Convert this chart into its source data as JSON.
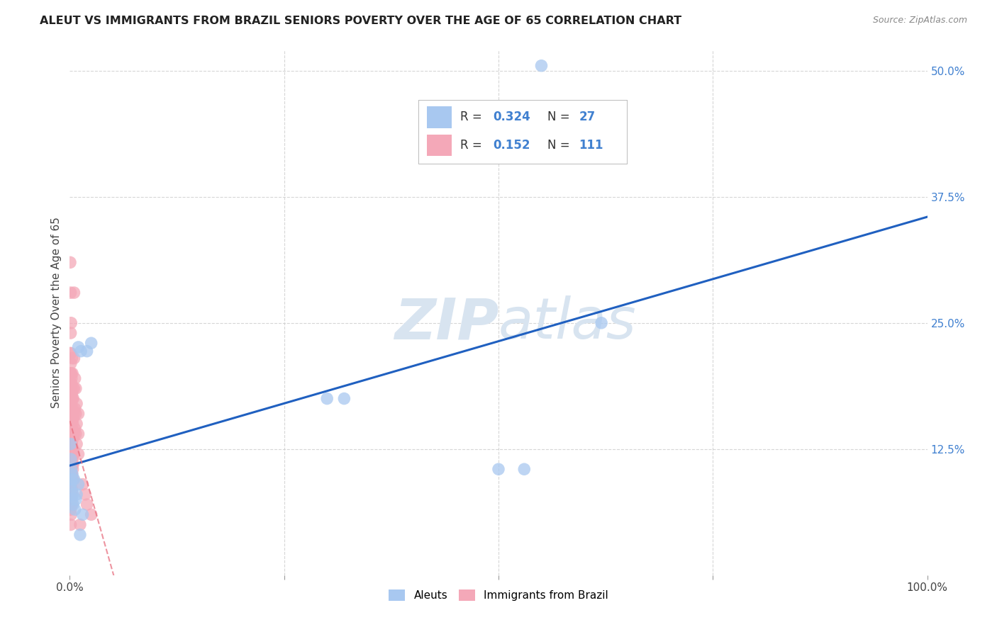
{
  "title": "ALEUT VS IMMIGRANTS FROM BRAZIL SENIORS POVERTY OVER THE AGE OF 65 CORRELATION CHART",
  "source": "Source: ZipAtlas.com",
  "ylabel": "Seniors Poverty Over the Age of 65",
  "aleut_R": 0.324,
  "aleut_N": 27,
  "brazil_R": 0.152,
  "brazil_N": 111,
  "aleut_color": "#a8c8f0",
  "brazil_color": "#f4a8b8",
  "aleut_line_color": "#2060c0",
  "brazil_line_color": "#e87080",
  "r_color": "#4080d0",
  "n_color": "#e04060",
  "watermark_color": "#d8e4f0",
  "background_color": "#ffffff",
  "grid_color": "#cccccc",
  "tick_color": "#4080d0",
  "aleut_points": [
    [
      0.0008,
      0.13
    ],
    [
      0.001,
      0.09
    ],
    [
      0.0012,
      0.115
    ],
    [
      0.0015,
      0.085
    ],
    [
      0.0018,
      0.105
    ],
    [
      0.002,
      0.095
    ],
    [
      0.0025,
      0.075
    ],
    [
      0.003,
      0.1
    ],
    [
      0.0035,
      0.08
    ],
    [
      0.004,
      0.07
    ],
    [
      0.005,
      0.095
    ],
    [
      0.006,
      0.065
    ],
    [
      0.007,
      0.075
    ],
    [
      0.008,
      0.08
    ],
    [
      0.01,
      0.09
    ],
    [
      0.012,
      0.04
    ],
    [
      0.013,
      0.222
    ],
    [
      0.015,
      0.06
    ],
    [
      0.02,
      0.222
    ],
    [
      0.025,
      0.23
    ],
    [
      0.01,
      0.226
    ],
    [
      0.3,
      0.175
    ],
    [
      0.32,
      0.175
    ],
    [
      0.5,
      0.105
    ],
    [
      0.53,
      0.105
    ],
    [
      0.55,
      0.505
    ],
    [
      0.62,
      0.25
    ]
  ],
  "brazil_points": [
    [
      0.0005,
      0.31
    ],
    [
      0.0005,
      0.13
    ],
    [
      0.0008,
      0.22
    ],
    [
      0.0008,
      0.2
    ],
    [
      0.0008,
      0.18
    ],
    [
      0.0008,
      0.16
    ],
    [
      0.0008,
      0.14
    ],
    [
      0.0008,
      0.12
    ],
    [
      0.001,
      0.28
    ],
    [
      0.001,
      0.24
    ],
    [
      0.001,
      0.22
    ],
    [
      0.001,
      0.2
    ],
    [
      0.001,
      0.185
    ],
    [
      0.001,
      0.17
    ],
    [
      0.001,
      0.155
    ],
    [
      0.001,
      0.14
    ],
    [
      0.001,
      0.125
    ],
    [
      0.001,
      0.11
    ],
    [
      0.001,
      0.095
    ],
    [
      0.001,
      0.08
    ],
    [
      0.001,
      0.065
    ],
    [
      0.001,
      0.05
    ],
    [
      0.0012,
      0.21
    ],
    [
      0.0012,
      0.19
    ],
    [
      0.0012,
      0.175
    ],
    [
      0.0012,
      0.16
    ],
    [
      0.0012,
      0.145
    ],
    [
      0.0012,
      0.13
    ],
    [
      0.0012,
      0.115
    ],
    [
      0.0012,
      0.1
    ],
    [
      0.0012,
      0.085
    ],
    [
      0.0012,
      0.07
    ],
    [
      0.0015,
      0.25
    ],
    [
      0.0015,
      0.2
    ],
    [
      0.0015,
      0.18
    ],
    [
      0.0015,
      0.165
    ],
    [
      0.0015,
      0.15
    ],
    [
      0.0015,
      0.135
    ],
    [
      0.0015,
      0.12
    ],
    [
      0.0015,
      0.105
    ],
    [
      0.0015,
      0.09
    ],
    [
      0.0015,
      0.075
    ],
    [
      0.0015,
      0.06
    ],
    [
      0.0018,
      0.19
    ],
    [
      0.0018,
      0.17
    ],
    [
      0.0018,
      0.155
    ],
    [
      0.0018,
      0.14
    ],
    [
      0.0018,
      0.125
    ],
    [
      0.0018,
      0.11
    ],
    [
      0.0018,
      0.095
    ],
    [
      0.0018,
      0.08
    ],
    [
      0.002,
      0.195
    ],
    [
      0.002,
      0.175
    ],
    [
      0.002,
      0.16
    ],
    [
      0.002,
      0.145
    ],
    [
      0.002,
      0.13
    ],
    [
      0.002,
      0.115
    ],
    [
      0.002,
      0.1
    ],
    [
      0.002,
      0.085
    ],
    [
      0.002,
      0.07
    ],
    [
      0.0025,
      0.215
    ],
    [
      0.0025,
      0.18
    ],
    [
      0.0025,
      0.16
    ],
    [
      0.0025,
      0.145
    ],
    [
      0.0025,
      0.13
    ],
    [
      0.0025,
      0.115
    ],
    [
      0.0025,
      0.1
    ],
    [
      0.0025,
      0.085
    ],
    [
      0.0025,
      0.07
    ],
    [
      0.003,
      0.2
    ],
    [
      0.003,
      0.175
    ],
    [
      0.003,
      0.155
    ],
    [
      0.003,
      0.14
    ],
    [
      0.003,
      0.125
    ],
    [
      0.003,
      0.11
    ],
    [
      0.003,
      0.095
    ],
    [
      0.003,
      0.08
    ],
    [
      0.0035,
      0.185
    ],
    [
      0.0035,
      0.165
    ],
    [
      0.0035,
      0.15
    ],
    [
      0.0035,
      0.135
    ],
    [
      0.0035,
      0.12
    ],
    [
      0.0035,
      0.105
    ],
    [
      0.004,
      0.175
    ],
    [
      0.004,
      0.155
    ],
    [
      0.004,
      0.14
    ],
    [
      0.004,
      0.125
    ],
    [
      0.004,
      0.11
    ],
    [
      0.004,
      0.095
    ],
    [
      0.005,
      0.28
    ],
    [
      0.005,
      0.215
    ],
    [
      0.005,
      0.185
    ],
    [
      0.005,
      0.16
    ],
    [
      0.005,
      0.14
    ],
    [
      0.005,
      0.12
    ],
    [
      0.006,
      0.195
    ],
    [
      0.006,
      0.165
    ],
    [
      0.006,
      0.145
    ],
    [
      0.007,
      0.185
    ],
    [
      0.007,
      0.16
    ],
    [
      0.007,
      0.14
    ],
    [
      0.008,
      0.17
    ],
    [
      0.008,
      0.15
    ],
    [
      0.008,
      0.13
    ],
    [
      0.01,
      0.16
    ],
    [
      0.01,
      0.14
    ],
    [
      0.01,
      0.12
    ],
    [
      0.012,
      0.05
    ],
    [
      0.015,
      0.09
    ],
    [
      0.018,
      0.08
    ],
    [
      0.02,
      0.07
    ],
    [
      0.025,
      0.06
    ]
  ]
}
